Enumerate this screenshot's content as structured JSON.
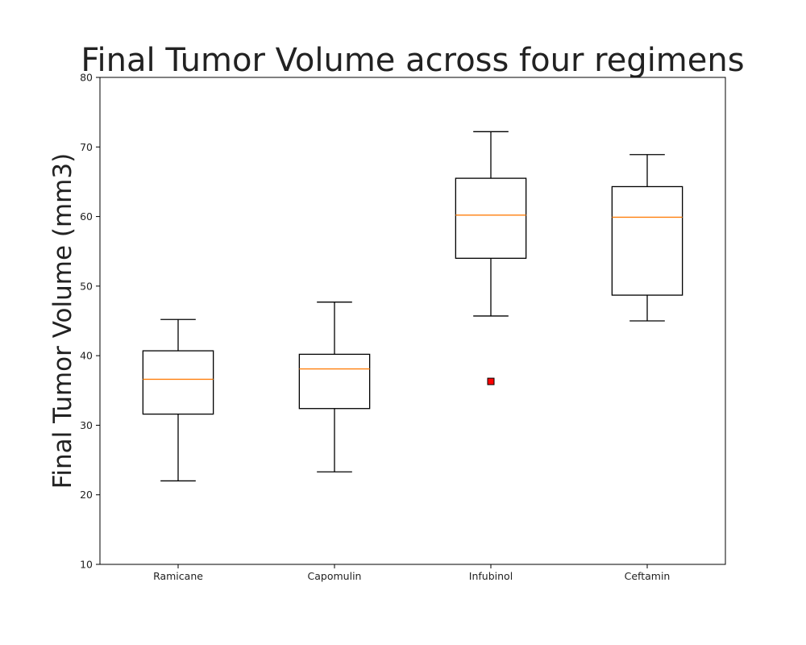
{
  "chart_data": {
    "type": "box",
    "title": "Final Tumor Volume across four regimens",
    "xlabel": "",
    "ylabel": "Final Tumor Volume (mm3)",
    "ylim": [
      10,
      80
    ],
    "yticks": [
      10,
      20,
      30,
      40,
      50,
      60,
      70,
      80
    ],
    "grid": false,
    "categories": [
      "Ramicane",
      "Capomulin",
      "Infubinol",
      "Ceftamin"
    ],
    "boxes": [
      {
        "category": "Ramicane",
        "whisker_low": 22.0,
        "q1": 31.6,
        "median": 36.6,
        "q3": 40.7,
        "whisker_high": 45.2,
        "outliers": []
      },
      {
        "category": "Capomulin",
        "whisker_low": 23.3,
        "q1": 32.4,
        "median": 38.1,
        "q3": 40.2,
        "whisker_high": 47.7,
        "outliers": []
      },
      {
        "category": "Infubinol",
        "whisker_low": 45.7,
        "q1": 54.0,
        "median": 60.2,
        "q3": 65.5,
        "whisker_high": 72.2,
        "outliers": [
          36.3
        ]
      },
      {
        "category": "Ceftamin",
        "whisker_low": 45.0,
        "q1": 48.7,
        "median": 59.9,
        "q3": 64.3,
        "whisker_high": 68.9,
        "outliers": []
      }
    ],
    "colors": {
      "box": "#000000",
      "median": "#ff7f0e",
      "outlier_fill": "#ff0000",
      "outlier_edge": "#000000",
      "axes": "#000000",
      "text": "#222222"
    }
  }
}
